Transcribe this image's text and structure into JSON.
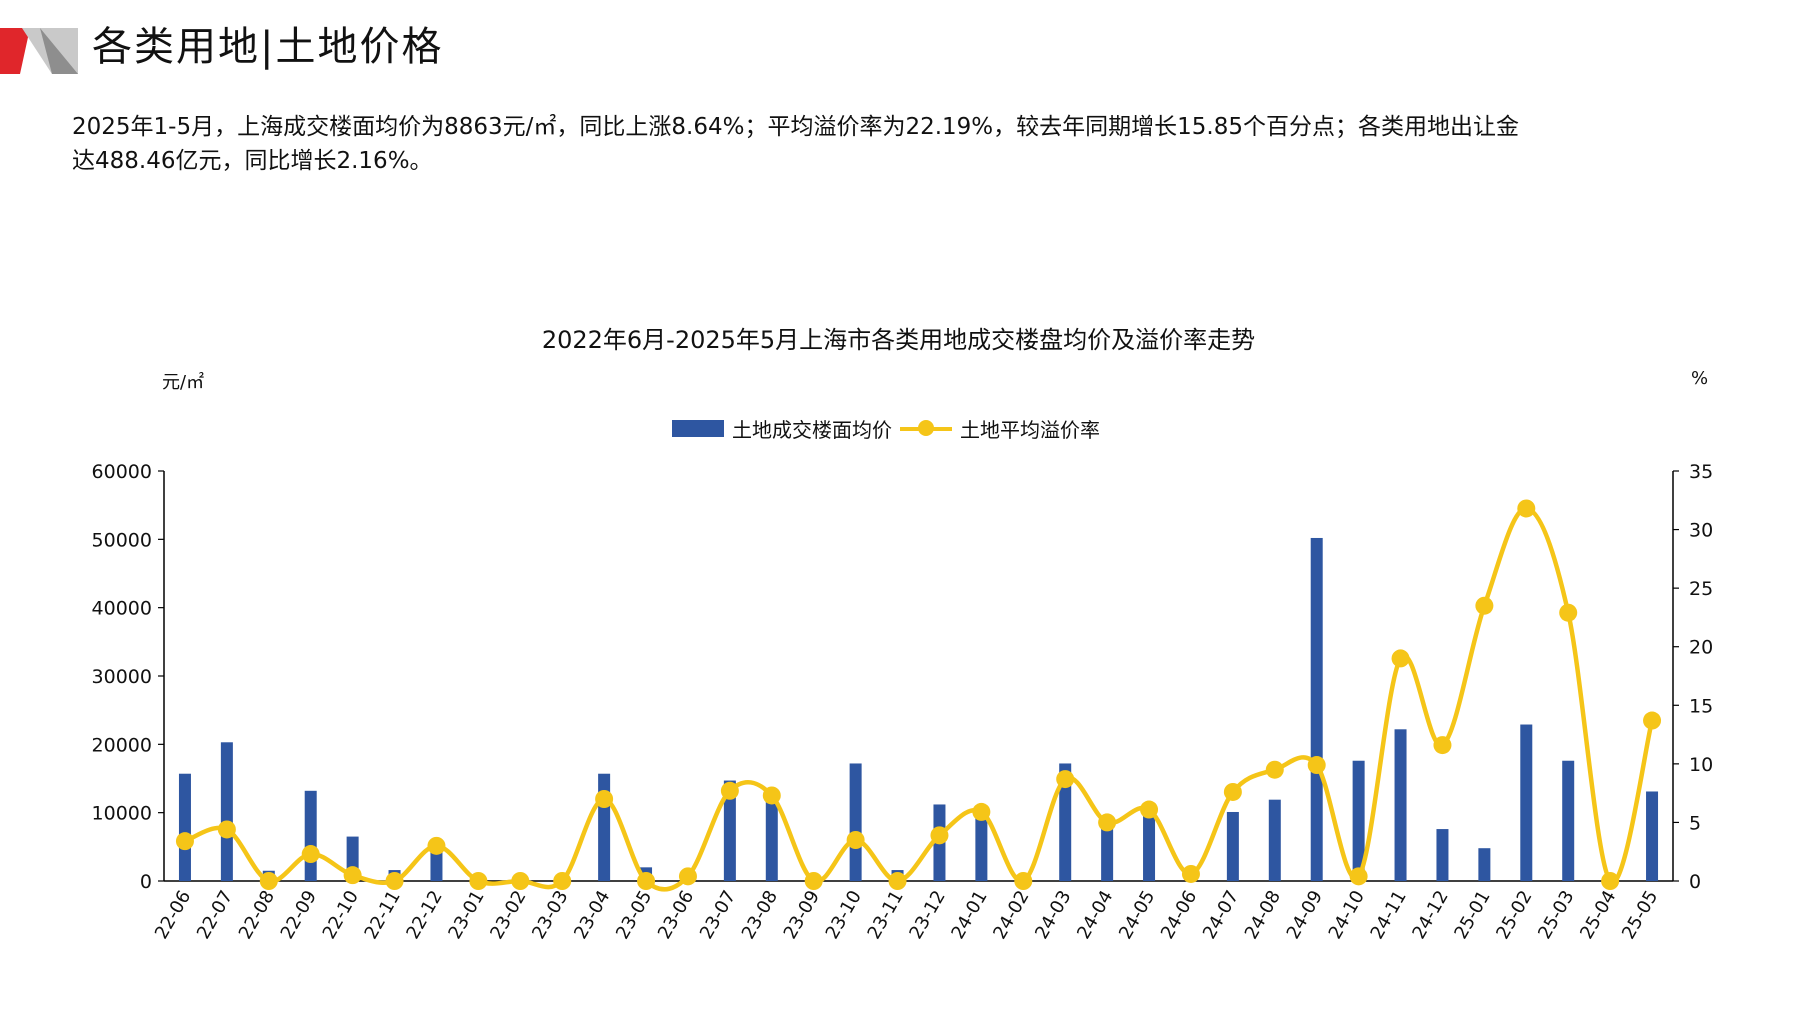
{
  "header": {
    "title": "各类用地|土地价格"
  },
  "summary": {
    "text_line1": "2025年1-5月，上海成交楼面均价为8863元/㎡，同比上涨8.64%；平均溢价率为22.19%，较去年同期增长15.85个百分点；各类用地出让金",
    "text_line2": "达488.46亿元，同比增长2.16%。"
  },
  "colors": {
    "bar": "#2E56A1",
    "line": "#F5C518",
    "accent_red": "#E0262B",
    "accent_gray": "#A8A8A8"
  },
  "chart_data": {
    "type": "bar",
    "title": "2022年6月-2025年5月上海市各类用地成交楼盘均价及溢价率走势",
    "y_left_label": "元/㎡",
    "y_right_label": "%",
    "y_left_ticks": [
      "0",
      "10000",
      "20000",
      "30000",
      "40000",
      "50000",
      "60000"
    ],
    "y_right_ticks": [
      "0",
      "5",
      "10",
      "15",
      "20",
      "25",
      "30",
      "35"
    ],
    "ylim_left": [
      0,
      60000
    ],
    "ylim_right": [
      0,
      35
    ],
    "grid": false,
    "legend_position": "top-center",
    "categories": [
      "22-06",
      "22-07",
      "22-08",
      "22-09",
      "22-10",
      "22-11",
      "22-12",
      "23-01",
      "23-02",
      "23-03",
      "23-04",
      "23-05",
      "23-06",
      "23-07",
      "23-08",
      "23-09",
      "23-10",
      "23-11",
      "23-12",
      "24-01",
      "24-02",
      "24-03",
      "24-04",
      "24-05",
      "24-06",
      "24-07",
      "24-08",
      "24-09",
      "24-10",
      "24-11",
      "24-12",
      "25-01",
      "25-02",
      "25-03",
      "25-04",
      "25-05"
    ],
    "series": [
      {
        "name": "土地成交楼面均价",
        "type": "bar",
        "axis": "left",
        "values": [
          15700,
          20300,
          1500,
          13200,
          6500,
          1600,
          4400,
          0,
          0,
          0,
          15700,
          2000,
          0,
          14700,
          12800,
          0,
          17200,
          1600,
          11200,
          9800,
          0,
          17200,
          8800,
          9800,
          0,
          10100,
          11900,
          50200,
          17600,
          22200,
          7600,
          4800,
          22900,
          17600,
          0,
          13100
        ]
      },
      {
        "name": "土地平均溢价率",
        "type": "line",
        "axis": "right",
        "values": [
          3.4,
          4.4,
          0,
          2.3,
          0.5,
          0,
          3.0,
          0,
          0,
          0,
          7.0,
          0,
          0.4,
          7.7,
          7.3,
          0,
          3.5,
          0,
          3.9,
          5.9,
          0,
          8.7,
          5.0,
          6.1,
          0.6,
          7.6,
          9.5,
          9.9,
          0.4,
          19.0,
          11.6,
          23.5,
          31.8,
          22.9,
          0,
          13.7
        ]
      }
    ]
  }
}
